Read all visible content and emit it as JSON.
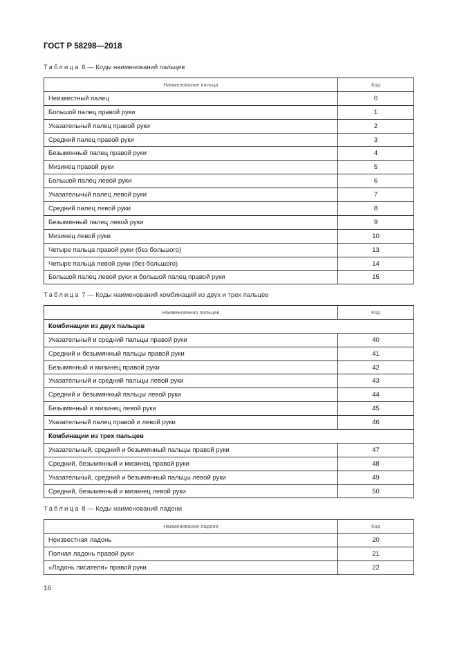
{
  "header": {
    "doc_id": "ГОСТ Р 58298—2018"
  },
  "tables": [
    {
      "caption_prefix": "Таблица",
      "caption_rest": " 6 — Коды наименований пальцев",
      "col_name": "Наименование пальца",
      "col_code": "Код",
      "rows": [
        {
          "name": "Неизвестный палец",
          "code": "0"
        },
        {
          "name": "Большой палец правой руки",
          "code": "1"
        },
        {
          "name": "Указательный палец правой руки",
          "code": "2"
        },
        {
          "name": "Средний палец правой руки",
          "code": "3"
        },
        {
          "name": "Безымянный палец правой руки",
          "code": "4"
        },
        {
          "name": "Мизинец правой руки",
          "code": "5"
        },
        {
          "name": "Большой палец левой руки",
          "code": "6"
        },
        {
          "name": "Указательный палец левой руки",
          "code": "7"
        },
        {
          "name": "Средний палец левой руки",
          "code": "8"
        },
        {
          "name": "Безымянный палец левой руки",
          "code": "9"
        },
        {
          "name": "Мизинец левой руки",
          "code": "10"
        },
        {
          "name": "Четыре пальца правой руки (без большого)",
          "code": "13"
        },
        {
          "name": "Четыре пальца левой руки (без большого)",
          "code": "14"
        },
        {
          "name": "Большой палец левой руки и большой палец правой руки",
          "code": "15"
        }
      ]
    },
    {
      "caption_prefix": "Таблица",
      "caption_rest": " 7 — Коды наименований комбинаций из двух и трех пальцев",
      "col_name": "Наименования пальцев",
      "col_code": "Код",
      "rows": [
        {
          "section": "Комбинации из двух пальцев"
        },
        {
          "name": "Указательный и средний пальцы правой руки",
          "code": "40"
        },
        {
          "name": "Средний и безымянный пальцы правой руки",
          "code": "41"
        },
        {
          "name": "Безымянный и мизинец правой руки",
          "code": "42"
        },
        {
          "name": "Указательный и средний пальцы левой руки",
          "code": "43"
        },
        {
          "name": "Средний и безымянный пальцы левой руки",
          "code": "44"
        },
        {
          "name": "Безымянный и мизинец левой руки",
          "code": "45"
        },
        {
          "name": "Указательный палец правой и левой руки",
          "code": "46"
        },
        {
          "section": "Комбинации из трех пальцев"
        },
        {
          "name": "Указательный, средний и безымянный пальцы правой руки",
          "code": "47"
        },
        {
          "name": "Средний, безымянный и мизинец правой руки",
          "code": "48"
        },
        {
          "name": "Указательный, средний и безымянный пальцы левой руки",
          "code": "49"
        },
        {
          "name": "Средний, безымянный и мизинец левой руки",
          "code": "50"
        }
      ]
    },
    {
      "caption_prefix": "Таблица",
      "caption_rest": " 8 — Коды наименований ладони",
      "col_name": "Наименование ладони",
      "col_code": "Код",
      "rows": [
        {
          "name": "Неизвестная ладонь",
          "code": "20"
        },
        {
          "name": "Полная ладонь правой руки",
          "code": "21"
        },
        {
          "name": "«Ладонь писателя» правой руки",
          "code": "22"
        }
      ]
    }
  ],
  "footer": {
    "page_number": "16"
  }
}
